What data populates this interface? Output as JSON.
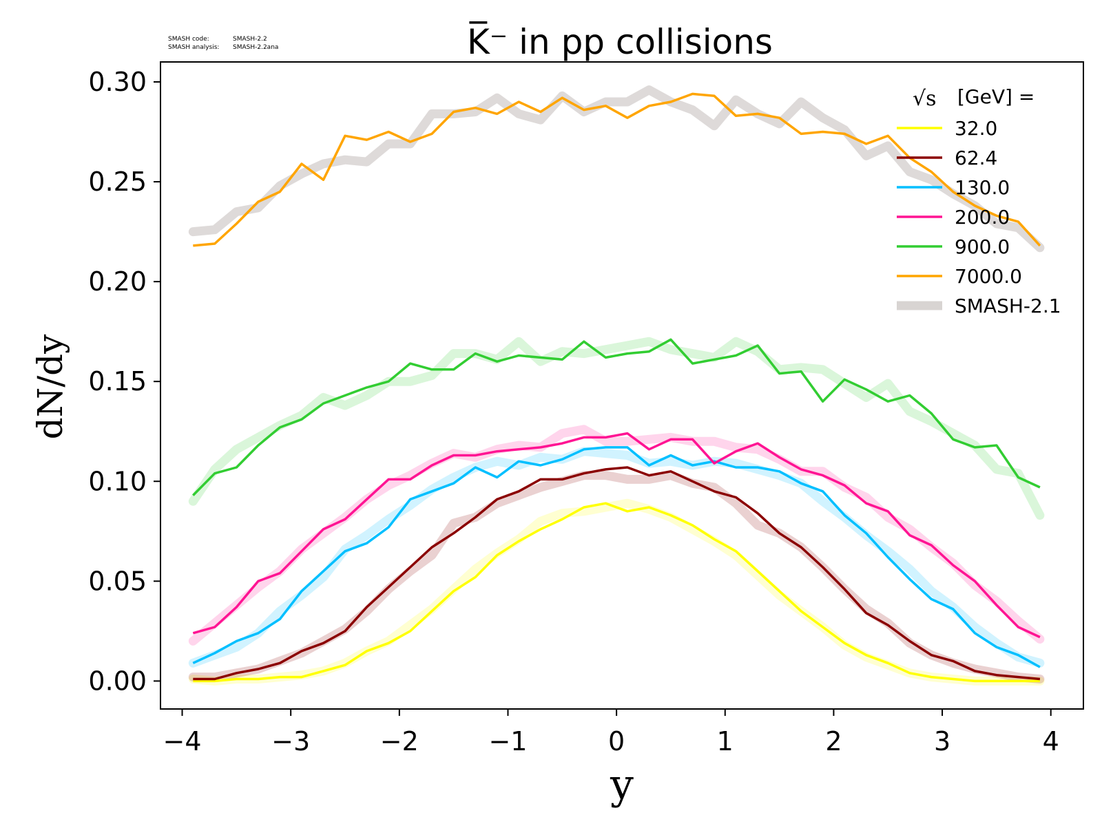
{
  "watermark": {
    "code_label": "SMASH code:",
    "code_value": "SMASH-2.2",
    "analysis_label": "SMASH analysis:",
    "analysis_value": "SMASH-2.2ana"
  },
  "chart_data": {
    "type": "line",
    "title": "K̅⁻ in pp collisions",
    "xlabel": "y",
    "ylabel": "dN/dy",
    "xlim": [
      -4.2,
      4.3
    ],
    "ylim": [
      -0.014,
      0.31
    ],
    "xticks": [
      -4,
      -3,
      -2,
      -1,
      0,
      1,
      2,
      3,
      4
    ],
    "xtick_labels": [
      "−4",
      "−3",
      "−2",
      "−1",
      "0",
      "1",
      "2",
      "3",
      "4"
    ],
    "yticks": [
      0.0,
      0.05,
      0.1,
      0.15,
      0.2,
      0.25,
      0.3
    ],
    "ytick_labels": [
      "0.00",
      "0.05",
      "0.10",
      "0.15",
      "0.20",
      "0.25",
      "0.30"
    ],
    "grid": false,
    "legend": {
      "placement": "top-right",
      "title_prefix": "√s",
      "title": "[GeV] =",
      "reference_name": "SMASH-2.1",
      "reference_color": "#d8d4d2"
    },
    "x": [
      -3.9,
      -3.7,
      -3.5,
      -3.3,
      -3.1,
      -2.9,
      -2.7,
      -2.5,
      -2.3,
      -2.1,
      -1.9,
      -1.7,
      -1.5,
      -1.3,
      -1.1,
      -0.9,
      -0.7,
      -0.5,
      -0.3,
      -0.1,
      0.1,
      0.3,
      0.5,
      0.7,
      0.9,
      1.1,
      1.3,
      1.5,
      1.7,
      1.9,
      2.1,
      2.3,
      2.5,
      2.7,
      2.9,
      3.1,
      3.3,
      3.5,
      3.7,
      3.9
    ],
    "series": [
      {
        "name": "32.0",
        "color": "#ffff00",
        "values": [
          0.0,
          0.0,
          0.001,
          0.001,
          0.002,
          0.002,
          0.005,
          0.008,
          0.015,
          0.019,
          0.025,
          0.035,
          0.045,
          0.052,
          0.063,
          0.07,
          0.076,
          0.081,
          0.087,
          0.089,
          0.085,
          0.087,
          0.083,
          0.078,
          0.071,
          0.065,
          0.055,
          0.045,
          0.035,
          0.027,
          0.019,
          0.013,
          0.009,
          0.004,
          0.002,
          0.001,
          0.0,
          0.0,
          0.0,
          0.0
        ],
        "reference": [
          0.001,
          0.0,
          0.001,
          0.001,
          0.002,
          0.003,
          0.005,
          0.009,
          0.015,
          0.02,
          0.028,
          0.036,
          0.046,
          0.056,
          0.064,
          0.071,
          0.08,
          0.084,
          0.085,
          0.087,
          0.089,
          0.086,
          0.082,
          0.076,
          0.07,
          0.063,
          0.053,
          0.043,
          0.035,
          0.027,
          0.018,
          0.012,
          0.008,
          0.004,
          0.002,
          0.001,
          0.0,
          0.0,
          0.0,
          0.0
        ]
      },
      {
        "name": "62.4",
        "color": "#8b0000",
        "values": [
          0.001,
          0.001,
          0.004,
          0.006,
          0.009,
          0.015,
          0.019,
          0.025,
          0.037,
          0.047,
          0.057,
          0.067,
          0.074,
          0.082,
          0.091,
          0.095,
          0.101,
          0.101,
          0.104,
          0.106,
          0.107,
          0.103,
          0.105,
          0.1,
          0.095,
          0.092,
          0.084,
          0.074,
          0.067,
          0.057,
          0.046,
          0.034,
          0.028,
          0.02,
          0.013,
          0.01,
          0.005,
          0.003,
          0.002,
          0.001
        ],
        "reference": [
          0.002,
          0.002,
          0.004,
          0.006,
          0.01,
          0.014,
          0.02,
          0.026,
          0.035,
          0.046,
          0.055,
          0.063,
          0.079,
          0.082,
          0.089,
          0.093,
          0.097,
          0.1,
          0.103,
          0.103,
          0.101,
          0.101,
          0.103,
          0.099,
          0.097,
          0.089,
          0.078,
          0.074,
          0.067,
          0.057,
          0.046,
          0.036,
          0.029,
          0.019,
          0.013,
          0.009,
          0.006,
          0.004,
          0.002,
          0.001
        ]
      },
      {
        "name": "130.0",
        "color": "#00bfff",
        "values": [
          0.009,
          0.014,
          0.02,
          0.024,
          0.031,
          0.045,
          0.055,
          0.065,
          0.069,
          0.077,
          0.091,
          0.095,
          0.099,
          0.107,
          0.102,
          0.11,
          0.108,
          0.111,
          0.116,
          0.117,
          0.117,
          0.108,
          0.113,
          0.108,
          0.11,
          0.107,
          0.107,
          0.105,
          0.099,
          0.095,
          0.083,
          0.074,
          0.062,
          0.051,
          0.041,
          0.036,
          0.024,
          0.017,
          0.013,
          0.007
        ],
        "reference": [
          0.009,
          0.013,
          0.017,
          0.024,
          0.035,
          0.043,
          0.052,
          0.066,
          0.073,
          0.081,
          0.088,
          0.096,
          0.102,
          0.107,
          0.11,
          0.108,
          0.112,
          0.111,
          0.115,
          0.114,
          0.113,
          0.109,
          0.11,
          0.108,
          0.11,
          0.109,
          0.106,
          0.103,
          0.099,
          0.09,
          0.082,
          0.073,
          0.065,
          0.056,
          0.045,
          0.037,
          0.027,
          0.019,
          0.012,
          0.009
        ]
      },
      {
        "name": "200.0",
        "color": "#ff1493",
        "values": [
          0.024,
          0.027,
          0.037,
          0.05,
          0.054,
          0.065,
          0.076,
          0.081,
          0.091,
          0.101,
          0.101,
          0.108,
          0.113,
          0.113,
          0.115,
          0.116,
          0.117,
          0.119,
          0.122,
          0.122,
          0.124,
          0.116,
          0.121,
          0.121,
          0.109,
          0.115,
          0.119,
          0.112,
          0.106,
          0.103,
          0.098,
          0.089,
          0.085,
          0.073,
          0.068,
          0.058,
          0.05,
          0.038,
          0.027,
          0.022
        ],
        "reference": [
          0.02,
          0.029,
          0.038,
          0.047,
          0.055,
          0.066,
          0.074,
          0.082,
          0.091,
          0.098,
          0.103,
          0.109,
          0.114,
          0.112,
          0.116,
          0.118,
          0.117,
          0.124,
          0.126,
          0.12,
          0.12,
          0.121,
          0.122,
          0.12,
          0.12,
          0.117,
          0.116,
          0.111,
          0.105,
          0.105,
          0.097,
          0.092,
          0.082,
          0.076,
          0.067,
          0.059,
          0.048,
          0.04,
          0.03,
          0.021
        ]
      },
      {
        "name": "900.0",
        "color": "#32cd32",
        "values": [
          0.093,
          0.104,
          0.107,
          0.118,
          0.127,
          0.131,
          0.139,
          0.143,
          0.147,
          0.15,
          0.159,
          0.156,
          0.156,
          0.164,
          0.16,
          0.163,
          0.162,
          0.161,
          0.17,
          0.162,
          0.164,
          0.165,
          0.171,
          0.159,
          0.161,
          0.163,
          0.168,
          0.154,
          0.155,
          0.14,
          0.151,
          0.146,
          0.14,
          0.143,
          0.134,
          0.121,
          0.117,
          0.118,
          0.102,
          0.097
        ],
        "reference": [
          0.09,
          0.106,
          0.116,
          0.122,
          0.128,
          0.133,
          0.142,
          0.138,
          0.143,
          0.15,
          0.15,
          0.153,
          0.164,
          0.164,
          0.161,
          0.17,
          0.16,
          0.165,
          0.164,
          0.166,
          0.168,
          0.17,
          0.166,
          0.164,
          0.162,
          0.17,
          0.165,
          0.156,
          0.157,
          0.156,
          0.149,
          0.142,
          0.149,
          0.135,
          0.13,
          0.124,
          0.118,
          0.106,
          0.104,
          0.083
        ]
      },
      {
        "name": "7000.0",
        "color": "#ffa500",
        "values": [
          0.218,
          0.219,
          0.229,
          0.24,
          0.245,
          0.259,
          0.251,
          0.273,
          0.271,
          0.275,
          0.27,
          0.274,
          0.285,
          0.287,
          0.284,
          0.29,
          0.285,
          0.292,
          0.286,
          0.288,
          0.282,
          0.288,
          0.29,
          0.294,
          0.293,
          0.283,
          0.284,
          0.282,
          0.274,
          0.275,
          0.274,
          0.269,
          0.273,
          0.262,
          0.255,
          0.245,
          0.238,
          0.233,
          0.23,
          0.218
        ],
        "reference": [
          0.225,
          0.226,
          0.235,
          0.237,
          0.248,
          0.254,
          0.259,
          0.261,
          0.26,
          0.269,
          0.269,
          0.284,
          0.284,
          0.285,
          0.292,
          0.284,
          0.281,
          0.293,
          0.285,
          0.29,
          0.29,
          0.296,
          0.29,
          0.286,
          0.278,
          0.291,
          0.284,
          0.279,
          0.29,
          0.282,
          0.276,
          0.263,
          0.268,
          0.255,
          0.251,
          0.244,
          0.238,
          0.229,
          0.227,
          0.217
        ]
      }
    ]
  }
}
